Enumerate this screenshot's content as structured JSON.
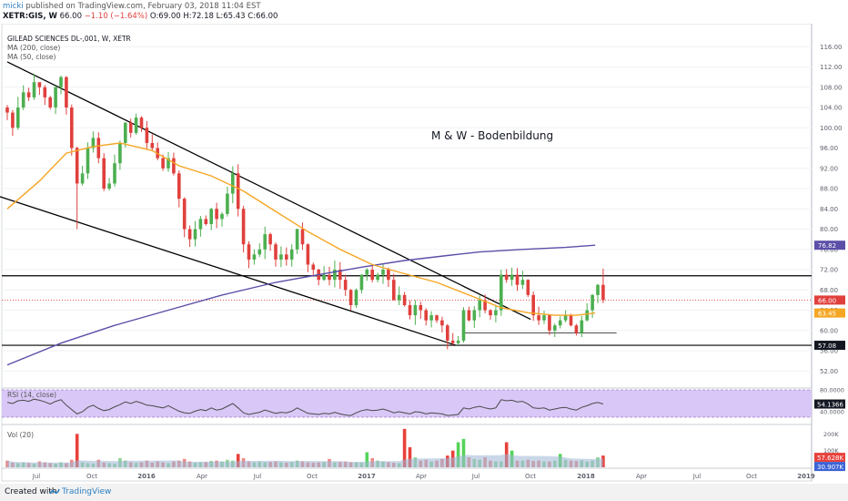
{
  "header": {
    "user": "micki",
    "published": "published on TradingView.com, February 03, 2018 11:04 EST",
    "symbol": "XETR:GIS, W",
    "quote": "66.00",
    "change": "−1.10 (−1.64%)",
    "ohlc": "O:69.00 H:72.18 L:65.43 C:66.00"
  },
  "legend": {
    "title": "GILEAD SCIENCES  DL-,001, W, XETR",
    "ma200": "MA (200, close)",
    "ma50": "MA (50, close)"
  },
  "annotation": "M & W - Bodenbildung",
  "rsi_label": "RSI (14, close)",
  "vol_label": "Vol (20)",
  "footer": {
    "created": "Created with",
    "brand": "TradingView"
  },
  "colors": {
    "up": "#4caf50",
    "down": "#e0403c",
    "ma50": "#f5a623",
    "ma200": "#5b4fa8",
    "trend": "#000000",
    "rsi_band": "#d9c7f7",
    "rsi_line": "#4a4a4a",
    "vol_up": "#55d45a",
    "vol_down": "#e8413b",
    "vol_ma": "#9fb6d6"
  },
  "chart_data": {
    "type": "candlestick",
    "title": "GILEAD SCIENCES  DL-,001, W, XETR",
    "x_tick_labels": [
      "Jul",
      "Oct",
      "2016",
      "Apr",
      "Jul",
      "Oct",
      "2017",
      "Apr",
      "Jul",
      "Oct",
      "2018",
      "Apr",
      "Jul",
      "Oct",
      "2019"
    ],
    "y_tick_labels": [
      "116.00",
      "112.00",
      "108.00",
      "104.00",
      "100.00",
      "96.00",
      "92.00",
      "88.00",
      "84.00",
      "80.00",
      "76.00",
      "72.00",
      "68.00",
      "64.00",
      "60.00",
      "56.00",
      "52.00"
    ],
    "ylim": [
      49,
      120
    ],
    "price_labels": [
      {
        "value": 76.82,
        "text": "76.82",
        "color": "#5b4fa8"
      },
      {
        "value": 66.0,
        "text": "66.00",
        "color": "#e0403c"
      },
      {
        "value": 63.45,
        "text": "63.45",
        "color": "#f5a623"
      },
      {
        "value": 57.08,
        "text": "57.08",
        "color": "#131722"
      }
    ],
    "horizontal_levels": [
      70.8,
      57.08,
      59.5,
      66.0
    ],
    "trend_lines": [
      {
        "from": {
          "bar": 0,
          "price": 113.0
        },
        "to": {
          "bar": 97.5,
          "price": 62.2
        }
      },
      {
        "from": {
          "bar": -6,
          "price": 88.0
        },
        "to": {
          "bar": 83.5,
          "price": 57.1
        }
      }
    ],
    "candles": [
      [
        104,
        103,
        101.5,
        104.5
      ],
      [
        103,
        100,
        98.4,
        103.5
      ],
      [
        100,
        104,
        99.6,
        106.1
      ],
      [
        104,
        107,
        103.5,
        108.4
      ],
      [
        107,
        106,
        105.3,
        107.9
      ],
      [
        106,
        109,
        105.5,
        110.6
      ],
      [
        109,
        108,
        106.5,
        108.9
      ],
      [
        108,
        106,
        104.5,
        108.4
      ],
      [
        106,
        104,
        103.6,
        106.3
      ],
      [
        104,
        108,
        102.7,
        108.3
      ],
      [
        108,
        110,
        106.6,
        110.3
      ],
      [
        110,
        104,
        102.6,
        110.2
      ],
      [
        104,
        96,
        94.5,
        104.6
      ],
      [
        96,
        89,
        80.0,
        96.3
      ],
      [
        89,
        91,
        88.6,
        92.5
      ],
      [
        91,
        96,
        89.9,
        97.1
      ],
      [
        96,
        98,
        95.1,
        99.3
      ],
      [
        98,
        94,
        93.0,
        99.1
      ],
      [
        94,
        88,
        87.5,
        95.0
      ],
      [
        88,
        89,
        87.6,
        90.1
      ],
      [
        89,
        93,
        88.4,
        94.7
      ],
      [
        93,
        97,
        91.7,
        97.5
      ],
      [
        97,
        101,
        96.1,
        101.1
      ],
      [
        101,
        99,
        98.1,
        101.8
      ],
      [
        99,
        102,
        98.6,
        102.8
      ],
      [
        102,
        100,
        99.2,
        102.3
      ],
      [
        100,
        97,
        95.9,
        101.3
      ],
      [
        97,
        96,
        95.4,
        98.7
      ],
      [
        96,
        94,
        93.6,
        97.1
      ],
      [
        94,
        92,
        91.5,
        94.7
      ],
      [
        92,
        94,
        91.3,
        95.2
      ],
      [
        94,
        91,
        90.6,
        95.1
      ],
      [
        91,
        86,
        84.3,
        91.6
      ],
      [
        86,
        80,
        78.4,
        86.3
      ],
      [
        80,
        78,
        76.5,
        80.7
      ],
      [
        78,
        80,
        76.6,
        81.6
      ],
      [
        80,
        82,
        78.5,
        82.6
      ],
      [
        82,
        81,
        80.7,
        82.7
      ],
      [
        81,
        84,
        79.8,
        84.2
      ],
      [
        84,
        82,
        80.2,
        85.2
      ],
      [
        82,
        83,
        80.5,
        83.4
      ],
      [
        83,
        87,
        82.5,
        88.4
      ],
      [
        87,
        91,
        85.1,
        92.4
      ],
      [
        91,
        84,
        82.5,
        92.8
      ],
      [
        84,
        77,
        75.4,
        84.6
      ],
      [
        77,
        74,
        72.3,
        77.6
      ],
      [
        74,
        75,
        73.0,
        76.0
      ],
      [
        75,
        76,
        74.5,
        77.2
      ],
      [
        76,
        79,
        74.1,
        80.5
      ],
      [
        79,
        77,
        75.7,
        79.3
      ],
      [
        77,
        74,
        72.6,
        77.4
      ],
      [
        74,
        75,
        72.5,
        76.6
      ],
      [
        75,
        74,
        72.8,
        76.4
      ],
      [
        74,
        76,
        72.6,
        77.0
      ],
      [
        76,
        80,
        75.1,
        80.1
      ],
      [
        80,
        77,
        75.9,
        81.3
      ],
      [
        77,
        73,
        71.5,
        77.2
      ],
      [
        73,
        72,
        70.6,
        73.4
      ],
      [
        72,
        70,
        68.9,
        72.2
      ],
      [
        70,
        71,
        69.8,
        72.7
      ],
      [
        71,
        70,
        68.9,
        72.6
      ],
      [
        70,
        72,
        68.5,
        73.8
      ],
      [
        72,
        70,
        68.2,
        73.5
      ],
      [
        70,
        68,
        66.8,
        71.0
      ],
      [
        68,
        65,
        64.0,
        68.2
      ],
      [
        65,
        68,
        64.5,
        68.3
      ],
      [
        68,
        71,
        67.3,
        71.1
      ],
      [
        71,
        72,
        69.8,
        72.3
      ],
      [
        72,
        70,
        69.5,
        73.0
      ],
      [
        70,
        71,
        69.5,
        71.4
      ],
      [
        71,
        72,
        69.2,
        73.1
      ],
      [
        72,
        70,
        68.6,
        72.4
      ],
      [
        70,
        66,
        65.9,
        71.2
      ],
      [
        66,
        67,
        65.0,
        68.7
      ],
      [
        67,
        65,
        64.7,
        67.6
      ],
      [
        65,
        63,
        62.2,
        65.9
      ],
      [
        63,
        65,
        61.1,
        66.0
      ],
      [
        65,
        64,
        62.3,
        65.7
      ],
      [
        64,
        62,
        61.0,
        64.4
      ],
      [
        62,
        63,
        60.6,
        63.8
      ],
      [
        63,
        62,
        61.5,
        63.1
      ],
      [
        62,
        61,
        59.6,
        62.7
      ],
      [
        61,
        58,
        56.3,
        61.3
      ],
      [
        58,
        57.5,
        57.1,
        59.5
      ],
      [
        57.5,
        58,
        57.1,
        58.9
      ],
      [
        58,
        64,
        57.6,
        64.6
      ],
      [
        64,
        62,
        61.8,
        64.7
      ],
      [
        62,
        64,
        60.5,
        64.8
      ],
      [
        64,
        66,
        62.6,
        66.9
      ],
      [
        66,
        64,
        63.4,
        67.1
      ],
      [
        64,
        63,
        62.1,
        64.2
      ],
      [
        63,
        64,
        61.6,
        65.0
      ],
      [
        64,
        71,
        62.9,
        72.0
      ],
      [
        71,
        70,
        69.4,
        72.1
      ],
      [
        70,
        71,
        68.8,
        72.4
      ],
      [
        71,
        69,
        67.8,
        72.3
      ],
      [
        69,
        70,
        68.2,
        71.8
      ],
      [
        70,
        67,
        66.6,
        70.1
      ],
      [
        67,
        63,
        61.9,
        67.7
      ],
      [
        63,
        62,
        61.1,
        64.7
      ],
      [
        62,
        63,
        61.3,
        63.9
      ],
      [
        63,
        60,
        59.1,
        63.1
      ],
      [
        60,
        61,
        58.7,
        61.4
      ],
      [
        61,
        62,
        60.4,
        62.8
      ],
      [
        62,
        63,
        61.6,
        64.0
      ],
      [
        63,
        61,
        60.8,
        63.3
      ],
      [
        61,
        59.5,
        59.0,
        61.3
      ],
      [
        59.5,
        62,
        58.7,
        62.9
      ],
      [
        62,
        64,
        61.8,
        65.4
      ],
      [
        64,
        67,
        62.5,
        67.2
      ],
      [
        67,
        69,
        65.4,
        69.2
      ],
      [
        69,
        66,
        65.4,
        72.2
      ]
    ],
    "ma50": [
      [
        0,
        84
      ],
      [
        6,
        89.5
      ],
      [
        11,
        95
      ],
      [
        16,
        96.3
      ],
      [
        21,
        97
      ],
      [
        27,
        95.5
      ],
      [
        32,
        92.5
      ],
      [
        38,
        90.5
      ],
      [
        44,
        87.5
      ],
      [
        50,
        83.5
      ],
      [
        56,
        79.5
      ],
      [
        62,
        76
      ],
      [
        68,
        73
      ],
      [
        74,
        71.2
      ],
      [
        80,
        69.5
      ],
      [
        86,
        67
      ],
      [
        92,
        64.5
      ],
      [
        97,
        63.5
      ],
      [
        102,
        63
      ],
      [
        106,
        63
      ],
      [
        109.5,
        63.45
      ]
    ],
    "ma200": [
      [
        0,
        53.2
      ],
      [
        10,
        57.5
      ],
      [
        20,
        61
      ],
      [
        30,
        64
      ],
      [
        40,
        67
      ],
      [
        50,
        69.5
      ],
      [
        58,
        71
      ],
      [
        66,
        72.5
      ],
      [
        74,
        73.8
      ],
      [
        82,
        74.8
      ],
      [
        88,
        75.5
      ],
      [
        96,
        76
      ],
      [
        104,
        76.4
      ],
      [
        109.5,
        76.82
      ]
    ],
    "rsi": {
      "label": "RSI (14, close)",
      "ylim": [
        20,
        80
      ],
      "tick_labels": [
        "80.0000",
        "40.0000"
      ],
      "last": "54.1366",
      "values": [
        57,
        55,
        60,
        61,
        59,
        63,
        61,
        58,
        54,
        59,
        62,
        52,
        44,
        36,
        40,
        48,
        52,
        46,
        42,
        44,
        49,
        53,
        58,
        55,
        59,
        56,
        52,
        51,
        49,
        47,
        51,
        46,
        41,
        38,
        37,
        41,
        44,
        42,
        47,
        43,
        45,
        50,
        55,
        47,
        38,
        35,
        37,
        39,
        43,
        40,
        37,
        39,
        38,
        41,
        47,
        42,
        37,
        36,
        35,
        37,
        36,
        39,
        36,
        34,
        33,
        38,
        42,
        44,
        42,
        43,
        45,
        42,
        38,
        40,
        38,
        36,
        40,
        39,
        36,
        38,
        37,
        36,
        33,
        34,
        35,
        47,
        45,
        48,
        50,
        47,
        45,
        47,
        62,
        60,
        61,
        58,
        59,
        54,
        47,
        46,
        47,
        43,
        45,
        47,
        48,
        45,
        43,
        48,
        51,
        55,
        57,
        54.1
      ]
    },
    "volume": {
      "label": "Vol (20)",
      "tick_labels": [
        "200K",
        "100K"
      ],
      "last_labels": [
        "57.628K",
        "30.907K"
      ],
      "values": [
        40,
        28,
        25,
        30,
        26,
        22,
        35,
        30,
        25,
        22,
        30,
        25,
        45,
        200,
        30,
        25,
        22,
        45,
        28,
        25,
        22,
        55,
        40,
        30,
        26,
        30,
        40,
        28,
        35,
        30,
        25,
        35,
        40,
        50,
        35,
        28,
        30,
        32,
        38,
        40,
        35,
        45,
        40,
        80,
        55,
        35,
        30,
        35,
        30,
        32,
        35,
        30,
        28,
        32,
        40,
        35,
        30,
        28,
        30,
        32,
        50,
        30,
        32,
        35,
        30,
        30,
        28,
        90,
        55,
        40,
        35,
        30,
        28,
        25,
        230,
        120,
        60,
        40,
        45,
        35,
        40,
        50,
        70,
        100,
        150,
        170,
        60,
        50,
        45,
        60,
        40,
        35,
        35,
        150,
        100,
        40,
        40,
        45,
        38,
        40,
        35,
        35,
        40,
        80,
        45,
        40,
        38,
        42,
        35,
        40,
        60,
        70
      ]
    }
  }
}
